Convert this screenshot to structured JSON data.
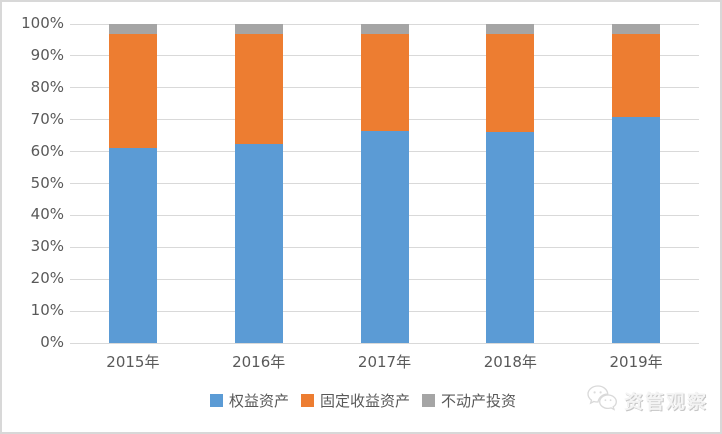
{
  "chart_data": {
    "type": "bar",
    "subtype": "stacked-100-percent-column",
    "categories": [
      "2015年",
      "2016年",
      "2017年",
      "2018年",
      "2019年"
    ],
    "series": [
      {
        "name": "权益资产",
        "color": "#5B9BD5",
        "values": [
          61,
          62.5,
          66.5,
          66,
          71
        ]
      },
      {
        "name": "固定收益资产",
        "color": "#ED7D31",
        "values": [
          36,
          34.5,
          30.5,
          31,
          26
        ]
      },
      {
        "name": "不动产投资",
        "color": "#A5A5A5",
        "values": [
          3,
          3,
          3,
          3,
          3
        ]
      }
    ],
    "y_ticks": [
      "0%",
      "10%",
      "20%",
      "30%",
      "40%",
      "50%",
      "60%",
      "70%",
      "80%",
      "90%",
      "100%"
    ],
    "ylim": [
      0,
      100
    ],
    "grid": true,
    "legend_position": "bottom"
  },
  "colors": {
    "gridline": "#D9D9D9",
    "axis_text": "#595959",
    "frame_border": "#D8D8D8",
    "background": "#FFFFFF",
    "watermark_text": "#F4F4F4"
  },
  "watermark": {
    "icon": "wechat-icon",
    "text": "资管观察"
  }
}
